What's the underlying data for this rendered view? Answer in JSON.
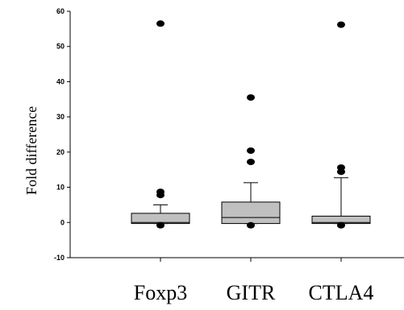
{
  "chart_data": {
    "type": "box",
    "title": "",
    "xlabel": "",
    "ylabel": "Fold difference",
    "ylim": [
      -10,
      60
    ],
    "yticks": [
      -10,
      0,
      10,
      20,
      30,
      40,
      50,
      60
    ],
    "grid": false,
    "legend": "none",
    "box_fill": "#c0c0c0",
    "categories": [
      "Foxp3",
      "GITR",
      "CTLA4"
    ],
    "boxes": [
      {
        "name": "Foxp3",
        "whisker_low": -0.3,
        "q1": -0.3,
        "median": 0.0,
        "q3": 2.6,
        "whisker_high": 5.0,
        "outliers": [
          56.5,
          8.7,
          7.8,
          -0.8
        ]
      },
      {
        "name": "GITR",
        "whisker_low": -0.3,
        "q1": -0.3,
        "median": 1.4,
        "q3": 5.8,
        "whisker_high": 11.3,
        "outliers": [
          35.5,
          20.4,
          17.2,
          -0.8
        ]
      },
      {
        "name": "CTLA4",
        "whisker_low": -0.3,
        "q1": -0.3,
        "median": 0.0,
        "q3": 1.8,
        "whisker_high": 12.7,
        "outliers": [
          56.2,
          15.6,
          14.4,
          -0.8
        ]
      }
    ]
  }
}
